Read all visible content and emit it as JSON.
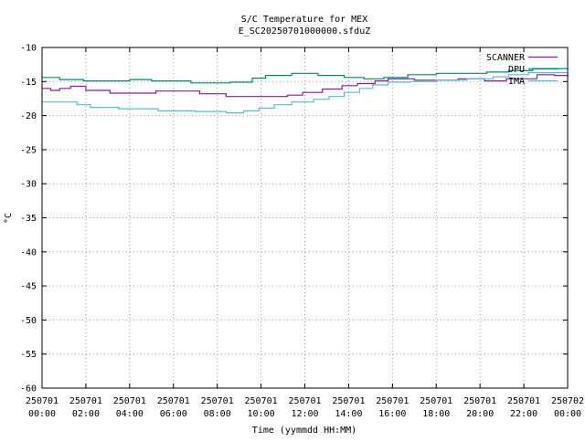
{
  "chart_data": {
    "type": "line",
    "title": "S/C Temperature for MEX",
    "subtitle": "E_SC20250701000000.sfduZ",
    "xlabel": "Time (yymmdd HH:MM)",
    "ylabel": "°C",
    "ylim": [
      -60,
      -10
    ],
    "yticks": [
      -10,
      -15,
      -20,
      -25,
      -30,
      -35,
      -40,
      -45,
      -50,
      -55,
      -60
    ],
    "xlim": [
      0,
      24
    ],
    "xticks": [
      {
        "x": 0,
        "date": "250701",
        "time": "00:00"
      },
      {
        "x": 2,
        "date": "250701",
        "time": "02:00"
      },
      {
        "x": 4,
        "date": "250701",
        "time": "04:00"
      },
      {
        "x": 6,
        "date": "250701",
        "time": "06:00"
      },
      {
        "x": 8,
        "date": "250701",
        "time": "08:00"
      },
      {
        "x": 10,
        "date": "250701",
        "time": "10:00"
      },
      {
        "x": 12,
        "date": "250701",
        "time": "12:00"
      },
      {
        "x": 14,
        "date": "250701",
        "time": "14:00"
      },
      {
        "x": 16,
        "date": "250701",
        "time": "16:00"
      },
      {
        "x": 18,
        "date": "250701",
        "time": "18:00"
      },
      {
        "x": 20,
        "date": "250701",
        "time": "20:00"
      },
      {
        "x": 22,
        "date": "250701",
        "time": "22:00"
      },
      {
        "x": 24,
        "date": "250702",
        "time": "00:00"
      }
    ],
    "grid": true,
    "legend_position": "top-right",
    "series": [
      {
        "name": "SCANNER",
        "color": "#8b1a9e",
        "points": [
          [
            0,
            -16.0
          ],
          [
            0.4,
            -16.3
          ],
          [
            0.8,
            -16.0
          ],
          [
            1.3,
            -15.7
          ],
          [
            2.0,
            -16.3
          ],
          [
            3.1,
            -16.7
          ],
          [
            5.2,
            -16.4
          ],
          [
            7.2,
            -16.8
          ],
          [
            8.4,
            -17.2
          ],
          [
            11.2,
            -17.0
          ],
          [
            11.9,
            -16.6
          ],
          [
            12.8,
            -16.1
          ],
          [
            13.7,
            -15.6
          ],
          [
            14.4,
            -15.3
          ],
          [
            15.2,
            -14.9
          ],
          [
            15.8,
            -14.6
          ],
          [
            17.0,
            -14.8
          ],
          [
            19.0,
            -14.6
          ],
          [
            20.2,
            -14.9
          ],
          [
            21.2,
            -14.6
          ],
          [
            22.6,
            -14.0
          ],
          [
            23.4,
            -14.1
          ],
          [
            24.0,
            -14.4
          ]
        ]
      },
      {
        "name": "DPU",
        "color": "#008c6e",
        "points": [
          [
            0,
            -14.4
          ],
          [
            0.8,
            -14.7
          ],
          [
            1.9,
            -14.9
          ],
          [
            4.0,
            -14.7
          ],
          [
            5.0,
            -14.9
          ],
          [
            6.8,
            -15.2
          ],
          [
            8.6,
            -15.1
          ],
          [
            9.6,
            -14.5
          ],
          [
            10.2,
            -14.1
          ],
          [
            11.4,
            -13.8
          ],
          [
            12.6,
            -14.1
          ],
          [
            13.8,
            -14.4
          ],
          [
            14.7,
            -14.6
          ],
          [
            15.6,
            -14.4
          ],
          [
            16.7,
            -14.0
          ],
          [
            18.0,
            -13.8
          ],
          [
            20.3,
            -13.6
          ],
          [
            21.3,
            -13.4
          ],
          [
            22.4,
            -13.1
          ],
          [
            24.0,
            -13.3
          ]
        ]
      },
      {
        "name": "IMA",
        "color": "#5bbccc",
        "points": [
          [
            0,
            -18.0
          ],
          [
            1.6,
            -18.4
          ],
          [
            2.2,
            -18.8
          ],
          [
            3.5,
            -19.0
          ],
          [
            5.3,
            -19.3
          ],
          [
            7.0,
            -19.4
          ],
          [
            8.4,
            -19.6
          ],
          [
            9.2,
            -19.3
          ],
          [
            9.9,
            -18.9
          ],
          [
            10.6,
            -18.4
          ],
          [
            11.4,
            -18.0
          ],
          [
            12.4,
            -17.6
          ],
          [
            13.1,
            -17.2
          ],
          [
            13.8,
            -16.6
          ],
          [
            14.5,
            -16.0
          ],
          [
            15.1,
            -15.5
          ],
          [
            15.8,
            -15.1
          ],
          [
            16.8,
            -15.0
          ],
          [
            18.0,
            -14.8
          ],
          [
            19.4,
            -14.6
          ],
          [
            20.6,
            -14.3
          ],
          [
            21.3,
            -14.0
          ],
          [
            22.2,
            -13.7
          ],
          [
            23.2,
            -13.7
          ],
          [
            24.0,
            -14.1
          ]
        ]
      }
    ]
  }
}
